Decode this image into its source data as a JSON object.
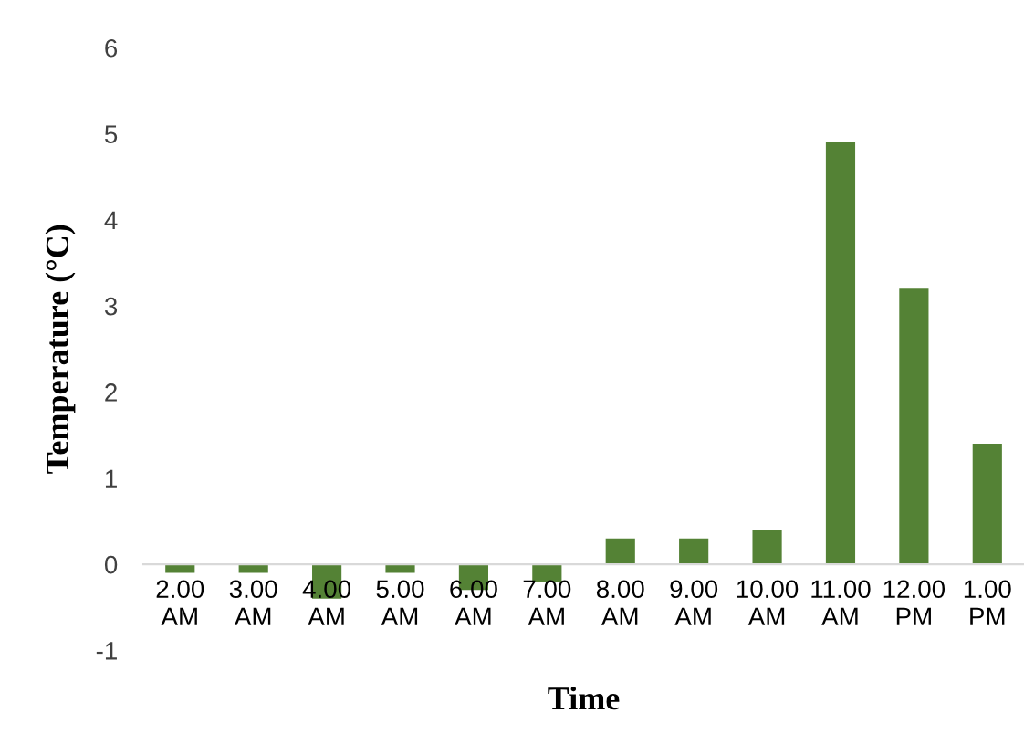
{
  "chart_data": {
    "type": "bar",
    "xlabel": "Time",
    "ylabel": "Temperature (°C)",
    "categories": [
      "2.00\nAM",
      "3.00\nAM",
      "4.00\nAM",
      "5.00\nAM",
      "6.00\nAM",
      "7.00\nAM",
      "8.00\nAM",
      "9.00\nAM",
      "10.00\nAM",
      "11.00\nAM",
      "12.00\nPM",
      "1.00\nPM"
    ],
    "values": [
      -0.1,
      -0.1,
      -0.4,
      -0.1,
      -0.3,
      -0.2,
      0.3,
      0.3,
      0.4,
      4.9,
      3.2,
      1.4
    ],
    "color": "#548235",
    "ylim": [
      -1,
      6
    ],
    "yticks": [
      -1,
      0,
      1,
      2,
      3,
      4,
      5,
      6
    ],
    "grid": false
  }
}
